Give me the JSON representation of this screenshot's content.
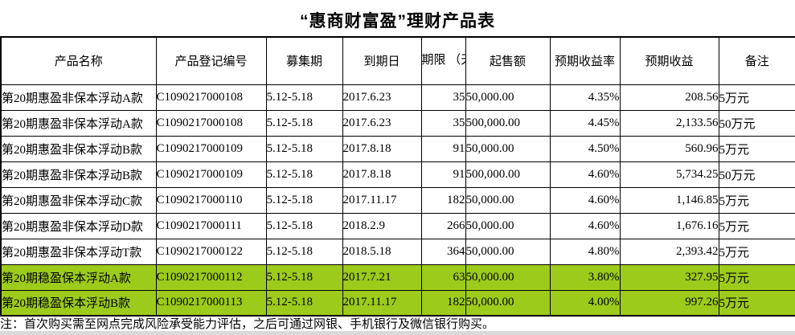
{
  "title": "“惠商财富盈”理财产品表",
  "colors": {
    "highlight_green": "#9CCB1C",
    "border": "#000000",
    "bottom_strip": "#DADADA"
  },
  "table": {
    "headers": [
      "产品名称",
      "产品登记编号",
      "募集期",
      "到期日",
      "期限\n（天）",
      "起售额",
      "预期收益率",
      "预期收益",
      "备注"
    ],
    "rows": [
      {
        "highlight": false,
        "cells": [
          "第20期惠盈非保本浮动A款",
          "C1090217000108",
          "5.12-5.18",
          "2017.6.23",
          "35",
          "50,000.00",
          "4.35%",
          "208.56",
          "5万元"
        ]
      },
      {
        "highlight": false,
        "cells": [
          "第20期惠盈非保本浮动A款",
          "C1090217000108",
          "5.12-5.18",
          "2017.6.23",
          "35",
          "500,000.00",
          "4.45%",
          "2,133.56",
          "50万元"
        ]
      },
      {
        "highlight": false,
        "cells": [
          "第20期惠盈非保本浮动B款",
          "C1090217000109",
          "5.12-5.18",
          "2017.8.18",
          "91",
          "50,000.00",
          "4.50%",
          "560.96",
          "5万元"
        ]
      },
      {
        "highlight": false,
        "cells": [
          "第20期惠盈非保本浮动B款",
          "C1090217000109",
          "5.12-5.18",
          "2017.8.18",
          "91",
          "500,000.00",
          "4.60%",
          "5,734.25",
          "50万元"
        ]
      },
      {
        "highlight": false,
        "cells": [
          "第20期惠盈非保本浮动C款",
          "C1090217000110",
          "5.12-5.18",
          "2017.11.17",
          "182",
          "50,000.00",
          "4.60%",
          "1,146.85",
          "5万元"
        ]
      },
      {
        "highlight": false,
        "cells": [
          "第20期惠盈非保本浮动D款",
          "C1090217000111",
          "5.12-5.18",
          "2018.2.9",
          "266",
          "50,000.00",
          "4.60%",
          "1,676.16",
          "5万元"
        ]
      },
      {
        "highlight": false,
        "cells": [
          "第20期惠盈非保本浮动T款",
          "C1090217000122",
          "5.12-5.18",
          "2018.5.18",
          "364",
          "50,000.00",
          "4.80%",
          "2,393.42",
          "5万元"
        ]
      },
      {
        "highlight": true,
        "cells": [
          "第20期稳盈保本浮动A款",
          "C1090217000112",
          "5.12-5.18",
          "2017.7.21",
          "63",
          "50,000.00",
          "3.80%",
          "327.95",
          "5万元"
        ]
      },
      {
        "highlight": true,
        "cells": [
          "第20期稳盈保本浮动B款",
          "C1090217000113",
          "5.12-5.18",
          "2017.11.17",
          "182",
          "50,000.00",
          "4.00%",
          "997.26",
          "5万元"
        ]
      }
    ]
  },
  "footnote": "注：首次购买需至网点完成风险承受能力评估，之后可通过网银、手机银行及微信银行购买。"
}
